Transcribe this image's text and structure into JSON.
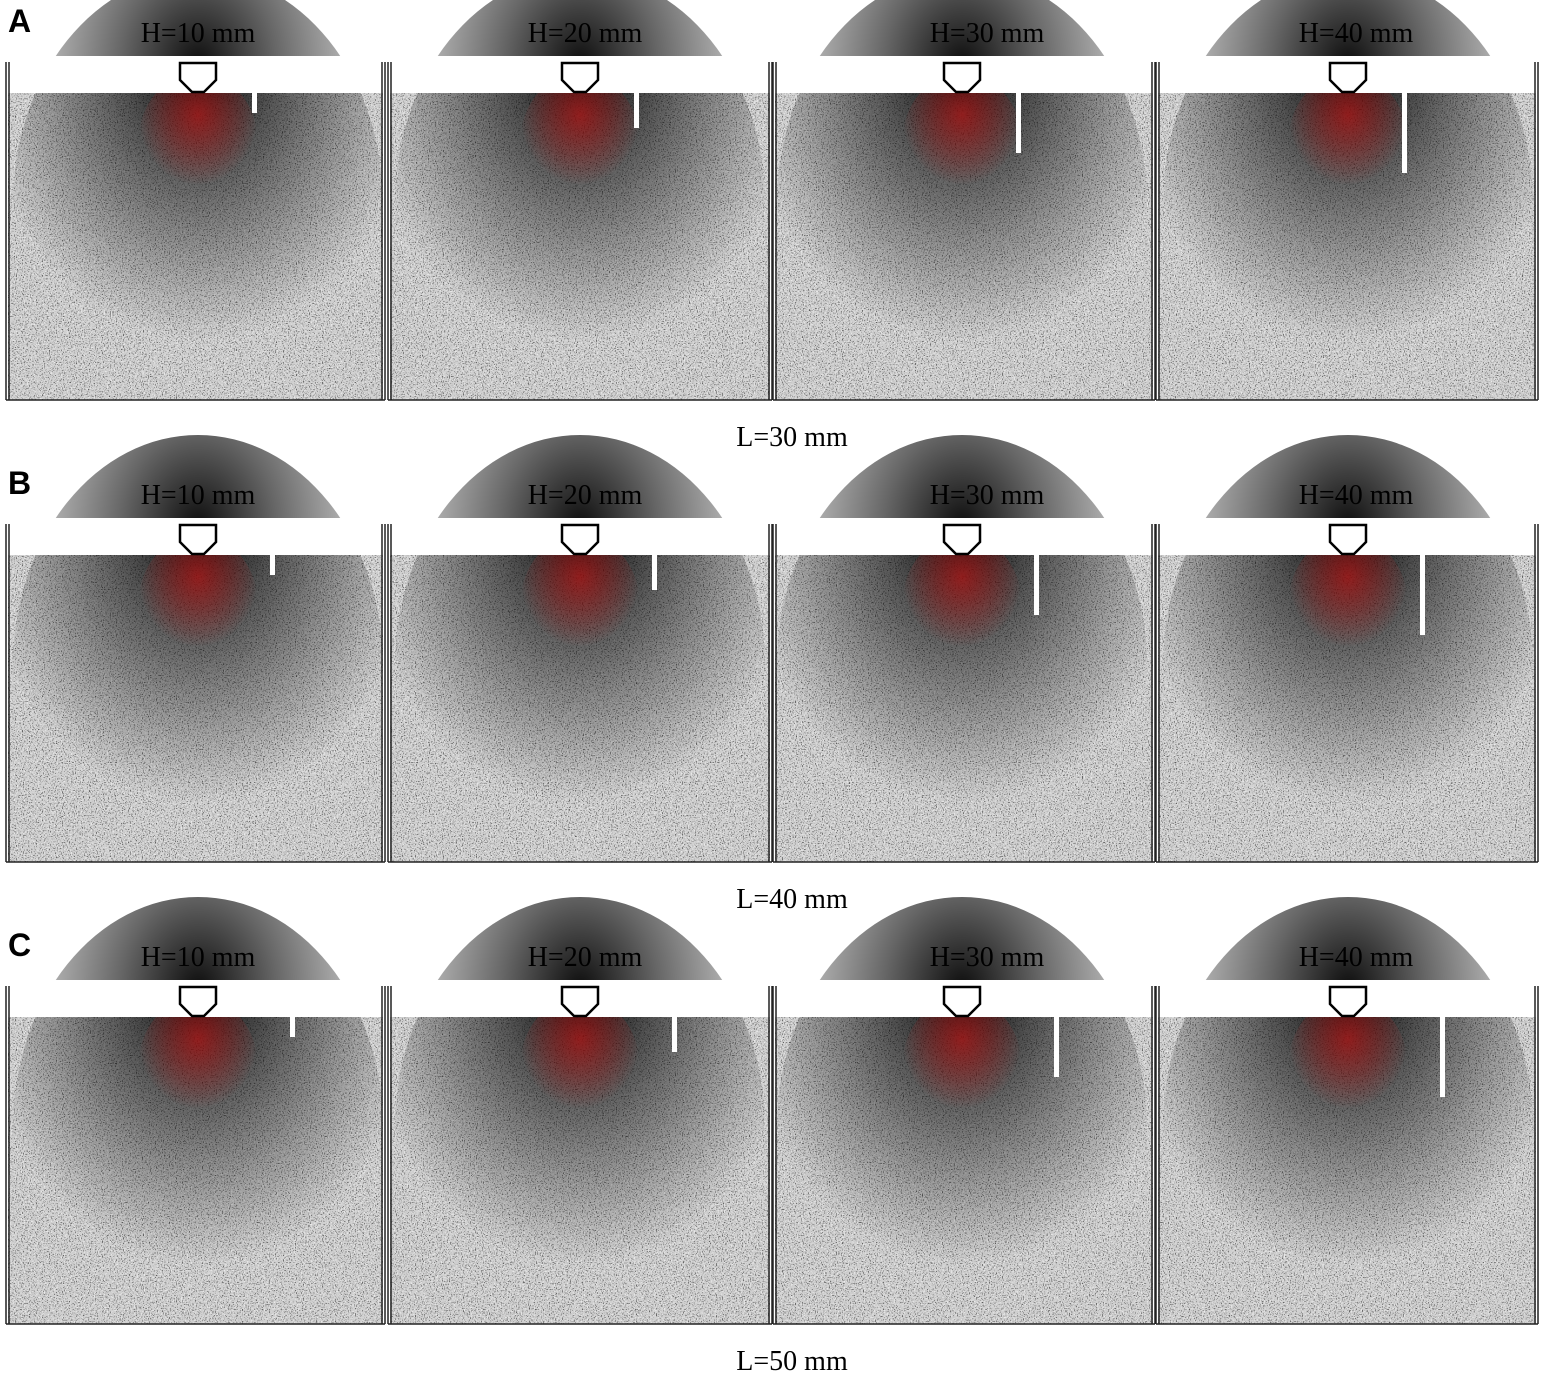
{
  "rows": [
    {
      "label": "A",
      "panels": [
        "H=10 mm",
        "H=20 mm",
        "H=30 mm",
        "H=40 mm"
      ],
      "caption": "L=30 mm"
    },
    {
      "label": "B",
      "panels": [
        "H=10 mm",
        "H=20 mm",
        "H=30 mm",
        "H=40 mm"
      ],
      "caption": "L=40 mm"
    },
    {
      "label": "C",
      "panels": [
        "H=10 mm",
        "H=20 mm",
        "H=30 mm",
        "H=40 mm"
      ],
      "caption": "L=50 mm"
    }
  ]
}
